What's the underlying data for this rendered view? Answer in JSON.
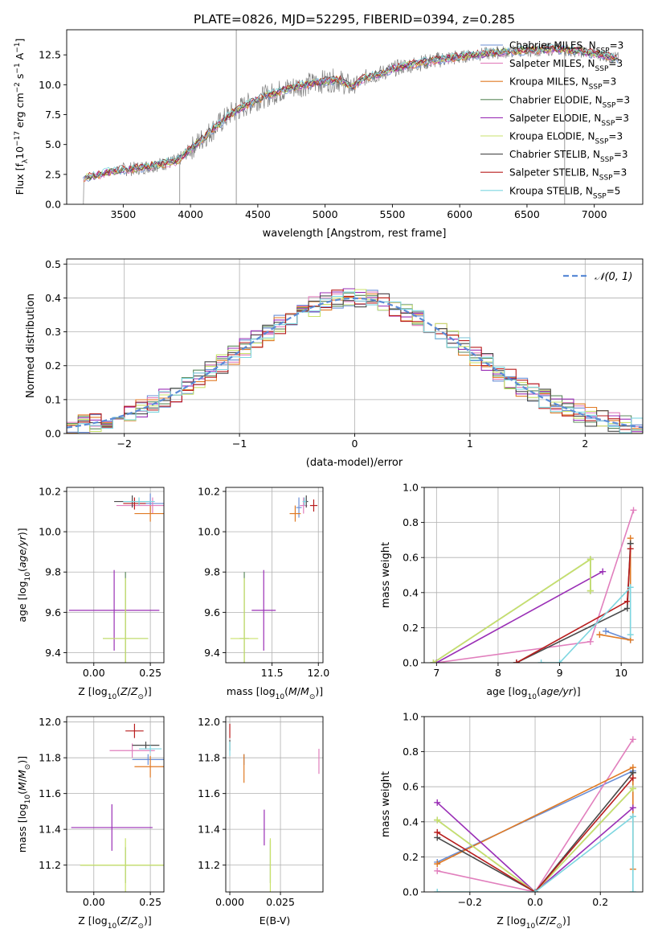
{
  "figure": {
    "title": "PLATE=0826, MJD=52295, FIBERID=0394, z=0.285"
  },
  "colors": {
    "chabrier_miles": "#6b8fd6",
    "salpeter_miles": "#e17fbd",
    "kroupa_miles": "#e07a24",
    "chabrier_elodie": "#5c8a5c",
    "salpeter_elodie": "#9a2fb6",
    "kroupa_elodie": "#c9e26b",
    "chabrier_stelib": "#4a4a4a",
    "salpeter_stelib": "#b81d1d",
    "kroupa_stelib": "#7dd6e0",
    "data": "#808080",
    "normal": "#5b8bd6"
  },
  "chart_data": [
    {
      "id": "spectrum",
      "type": "line",
      "title": "PLATE=0826, MJD=52295, FIBERID=0394, z=0.285",
      "xlabel": "wavelength [Angstrom, rest frame]",
      "ylabel": "Flux [f",
      "xlim": [
        3080,
        7360
      ],
      "ylim": [
        0,
        14.6
      ],
      "xticks": [
        3500,
        4000,
        4500,
        5000,
        5500,
        6000,
        6500,
        7000
      ],
      "yticks": [
        0.0,
        2.5,
        5.0,
        7.5,
        10.0,
        12.5
      ],
      "ytick_labels": [
        "0.0",
        "2.5",
        "5.0",
        "7.5",
        "10.0",
        "12.5"
      ],
      "legend_position": "upper right",
      "legend": [
        {
          "name": "Chabrier MILES, N",
          "sub": "SSP",
          "suffix": "=3",
          "color": "#6b8fd6"
        },
        {
          "name": "Salpeter MILES, N",
          "sub": "SSP",
          "suffix": "=3",
          "color": "#e17fbd"
        },
        {
          "name": "Kroupa MILES, N",
          "sub": "SSP",
          "suffix": "=3",
          "color": "#e07a24"
        },
        {
          "name": "Chabrier ELODIE, N",
          "sub": "SSP",
          "suffix": "=3",
          "color": "#5c8a5c"
        },
        {
          "name": "Salpeter ELODIE, N",
          "sub": "SSP",
          "suffix": "=3",
          "color": "#9a2fb6"
        },
        {
          "name": "Kroupa ELODIE, N",
          "sub": "SSP",
          "suffix": "=3",
          "color": "#c9e26b"
        },
        {
          "name": "Chabrier STELIB, N",
          "sub": "SSP",
          "suffix": "=3",
          "color": "#4a4a4a"
        },
        {
          "name": "Salpeter STELIB, N",
          "sub": "SSP",
          "suffix": "=3",
          "color": "#b81d1d"
        },
        {
          "name": "Kroupa STELIB, N",
          "sub": "SSP",
          "suffix": "=5",
          "color": "#7dd6e0"
        }
      ],
      "continuum": {
        "x": [
          3200,
          3300,
          3400,
          3500,
          3600,
          3700,
          3800,
          3900,
          4000,
          4100,
          4200,
          4300,
          4400,
          4500,
          4600,
          4700,
          4800,
          4900,
          5000,
          5100,
          5200,
          5300,
          5400,
          5500,
          5600,
          5700,
          5800,
          5900,
          6000,
          6100,
          6200,
          6300,
          6400,
          6500,
          6600,
          6700,
          6800,
          6900,
          7000,
          7100,
          7180
        ],
        "y": [
          2.2,
          2.4,
          2.7,
          2.9,
          3.0,
          3.2,
          3.4,
          3.6,
          4.6,
          5.6,
          6.6,
          7.6,
          8.2,
          8.8,
          9.2,
          9.6,
          9.9,
          10.1,
          10.3,
          10.4,
          9.8,
          10.6,
          10.9,
          11.3,
          11.6,
          11.8,
          12.0,
          12.2,
          12.3,
          12.5,
          12.6,
          12.7,
          12.8,
          12.9,
          12.9,
          13.0,
          12.9,
          12.8,
          12.6,
          12.4,
          12.2
        ]
      }
    },
    {
      "id": "residuals",
      "type": "bar",
      "xlabel": "(data-model)/error",
      "ylabel": "Normed distribution",
      "xlim": [
        -2.5,
        2.5
      ],
      "ylim": [
        0,
        0.515
      ],
      "xticks": [
        -2,
        -1,
        0,
        1,
        2
      ],
      "xtick_labels": [
        "−2",
        "−1",
        "0",
        "1",
        "2"
      ],
      "yticks": [
        0.0,
        0.1,
        0.2,
        0.3,
        0.4,
        0.5
      ],
      "ytick_labels": [
        "0.0",
        "0.1",
        "0.2",
        "0.3",
        "0.4",
        "0.5"
      ],
      "legend": [
        {
          "name": "𝒩(0, 1)",
          "color": "#5b8bd6",
          "style": "dashed"
        }
      ],
      "legend_position": "upper right",
      "bins": {
        "start": -2.5,
        "width": 0.1
      }
    },
    {
      "id": "age_vs_Z",
      "type": "scatter",
      "xlabel": "Z [log",
      "ylabel": "age  [log",
      "xlim": [
        -0.12,
        0.31
      ],
      "ylim": [
        9.35,
        10.22
      ],
      "xticks": [
        0.0,
        0.25
      ],
      "xtick_labels": [
        "0.00",
        "0.25"
      ],
      "yticks": [
        9.4,
        9.6,
        9.8,
        10.0,
        10.2
      ],
      "ytick_labels": [
        "9.4",
        "9.6",
        "9.8",
        "10.0",
        "10.2"
      ],
      "points": [
        {
          "model": "chabrier_miles",
          "x": 0.25,
          "y": 10.14,
          "xerr": 0.06,
          "yerr": 0.05
        },
        {
          "model": "salpeter_miles",
          "x": 0.26,
          "y": 10.13,
          "xerr": 0.16,
          "yerr": 0.04
        },
        {
          "model": "kroupa_miles",
          "x": 0.25,
          "y": 10.09,
          "xerr": 0.07,
          "yerr": 0.04
        },
        {
          "model": "chabrier_elodie",
          "x": 0.14,
          "y": 9.47,
          "xerr": 0.1,
          "yerr": 0.33
        },
        {
          "model": "salpeter_elodie",
          "x": 0.09,
          "y": 9.61,
          "xerr": 0.2,
          "yerr": 0.2
        },
        {
          "model": "kroupa_elodie",
          "x": 0.14,
          "y": 9.47,
          "xerr": 0.1,
          "yerr": 0.3
        },
        {
          "model": "chabrier_stelib",
          "x": 0.17,
          "y": 10.15,
          "xerr": 0.08,
          "yerr": 0.03
        },
        {
          "model": "salpeter_stelib",
          "x": 0.18,
          "y": 10.14,
          "xerr": 0.05,
          "yerr": 0.03
        },
        {
          "model": "kroupa_stelib",
          "x": 0.2,
          "y": 10.15,
          "xerr": 0.07,
          "yerr": 0.02
        }
      ]
    },
    {
      "id": "age_vs_mass",
      "type": "scatter",
      "xlabel": "mass [log",
      "ylabel": "",
      "xlim": [
        11.0,
        12.05
      ],
      "ylim": [
        9.35,
        10.22
      ],
      "xticks": [
        11.5,
        12.0
      ],
      "xtick_labels": [
        "11.5",
        "12.0"
      ],
      "yticks": [
        9.4,
        9.6,
        9.8,
        10.0,
        10.2
      ],
      "ytick_labels": [
        "9.4",
        "9.6",
        "9.8",
        "10.0",
        "10.2"
      ],
      "points": [
        {
          "model": "chabrier_miles",
          "x": 11.79,
          "y": 10.12,
          "xerr": 0.03,
          "yerr": 0.05
        },
        {
          "model": "salpeter_miles",
          "x": 11.84,
          "y": 10.13,
          "xerr": 0.04,
          "yerr": 0.04
        },
        {
          "model": "kroupa_miles",
          "x": 11.75,
          "y": 10.09,
          "xerr": 0.06,
          "yerr": 0.04
        },
        {
          "model": "chabrier_elodie",
          "x": 11.2,
          "y": 9.47,
          "xerr": 0.05,
          "yerr": 0.33
        },
        {
          "model": "salpeter_elodie",
          "x": 11.41,
          "y": 9.61,
          "xerr": 0.13,
          "yerr": 0.2
        },
        {
          "model": "kroupa_elodie",
          "x": 11.2,
          "y": 9.47,
          "xerr": 0.15,
          "yerr": 0.3
        },
        {
          "model": "chabrier_stelib",
          "x": 11.87,
          "y": 10.15,
          "xerr": 0.02,
          "yerr": 0.03
        },
        {
          "model": "salpeter_stelib",
          "x": 11.95,
          "y": 10.13,
          "xerr": 0.04,
          "yerr": 0.03
        },
        {
          "model": "kroupa_stelib",
          "x": 11.85,
          "y": 10.15,
          "xerr": 0.02,
          "yerr": 0.02
        }
      ]
    },
    {
      "id": "weight_vs_age",
      "type": "line",
      "xlabel": "age  [log",
      "ylabel": "mass weight",
      "xlim": [
        6.8,
        10.35
      ],
      "ylim": [
        0,
        1.0
      ],
      "xticks": [
        7,
        8,
        9,
        10
      ],
      "xtick_labels": [
        "7",
        "8",
        "9",
        "10"
      ],
      "yticks": [
        0.0,
        0.2,
        0.4,
        0.6,
        0.8,
        1.0
      ],
      "ytick_labels": [
        "0.0",
        "0.2",
        "0.4",
        "0.6",
        "0.8",
        "1.0"
      ],
      "series": [
        {
          "model": "chabrier_miles",
          "x": [
            9.75,
            10.15
          ],
          "y": [
            0.18,
            0.13
          ]
        },
        {
          "model": "salpeter_miles",
          "x": [
            7.0,
            9.5,
            10.2
          ],
          "y": [
            0.0,
            0.12,
            0.87
          ]
        },
        {
          "model": "kroupa_miles",
          "x": [
            9.65,
            10.15,
            10.15
          ],
          "y": [
            0.16,
            0.13,
            0.71
          ]
        },
        {
          "model": "chabrier_elodie",
          "x": [
            6.95,
            9.5,
            9.5
          ],
          "y": [
            0.0,
            0.59,
            0.41
          ]
        },
        {
          "model": "salpeter_elodie",
          "x": [
            7.0,
            9.7
          ],
          "y": [
            0.0,
            0.52
          ]
        },
        {
          "model": "kroupa_elodie",
          "x": [
            6.95,
            9.5,
            9.5
          ],
          "y": [
            0.0,
            0.59,
            0.41
          ]
        },
        {
          "model": "chabrier_stelib",
          "x": [
            8.3,
            10.1,
            10.15
          ],
          "y": [
            0.0,
            0.31,
            0.68
          ]
        },
        {
          "model": "salpeter_stelib",
          "x": [
            8.3,
            10.1,
            10.15
          ],
          "y": [
            0.0,
            0.35,
            0.65
          ]
        },
        {
          "model": "kroupa_stelib",
          "x": [
            8.7,
            9.0,
            10.15,
            10.15
          ],
          "y": [
            0.0,
            0.0,
            0.43,
            0.16
          ]
        }
      ]
    },
    {
      "id": "mass_vs_Z",
      "type": "scatter",
      "xlabel": "Z [log",
      "ylabel": "mass [log",
      "xlim": [
        -0.12,
        0.31
      ],
      "ylim": [
        11.05,
        12.03
      ],
      "xticks": [
        0.0,
        0.25
      ],
      "xtick_labels": [
        "0.00",
        "0.25"
      ],
      "yticks": [
        11.2,
        11.4,
        11.6,
        11.8,
        12.0
      ],
      "ytick_labels": [
        "11.2",
        "11.4",
        "11.6",
        "11.8",
        "12.0"
      ],
      "points": [
        {
          "model": "chabrier_miles",
          "x": 0.24,
          "y": 11.79,
          "xerr": 0.07,
          "yerr": 0.03
        },
        {
          "model": "salpeter_miles",
          "x": 0.17,
          "y": 11.84,
          "xerr": 0.1,
          "yerr": 0.04
        },
        {
          "model": "kroupa_miles",
          "x": 0.25,
          "y": 11.75,
          "xerr": 0.07,
          "yerr": 0.06
        },
        {
          "model": "chabrier_elodie",
          "x": 0.14,
          "y": 11.2,
          "xerr": 0.2,
          "yerr": 0.1
        },
        {
          "model": "salpeter_elodie",
          "x": 0.08,
          "y": 11.41,
          "xerr": 0.18,
          "yerr": 0.13
        },
        {
          "model": "kroupa_elodie",
          "x": 0.14,
          "y": 11.2,
          "xerr": 0.2,
          "yerr": 0.15
        },
        {
          "model": "chabrier_stelib",
          "x": 0.23,
          "y": 11.87,
          "xerr": 0.06,
          "yerr": 0.02
        },
        {
          "model": "salpeter_stelib",
          "x": 0.18,
          "y": 11.95,
          "xerr": 0.04,
          "yerr": 0.04
        },
        {
          "model": "kroupa_stelib",
          "x": 0.25,
          "y": 11.85,
          "xerr": 0.05,
          "yerr": 0.02
        }
      ]
    },
    {
      "id": "mass_vs_EBV",
      "type": "scatter",
      "xlabel": "E(B-V)",
      "ylabel": "",
      "xlim": [
        -0.002,
        0.046
      ],
      "ylim": [
        11.05,
        12.03
      ],
      "xticks": [
        0.0,
        0.025
      ],
      "xtick_labels": [
        "0.000",
        "0.025"
      ],
      "yticks": [
        11.2,
        11.4,
        11.6,
        11.8,
        12.0
      ],
      "ytick_labels": [
        "11.2",
        "11.4",
        "11.6",
        "11.8",
        "12.0"
      ],
      "points": [
        {
          "model": "chabrier_miles",
          "x": 0.007,
          "y": 11.79,
          "xerr": 0.0,
          "yerr": 0.03
        },
        {
          "model": "salpeter_miles",
          "x": 0.044,
          "y": 11.78,
          "xerr": 0.0,
          "yerr": 0.07
        },
        {
          "model": "kroupa_miles",
          "x": 0.007,
          "y": 11.74,
          "xerr": 0.0,
          "yerr": 0.08
        },
        {
          "model": "chabrier_elodie",
          "x": 0.02,
          "y": 11.22,
          "xerr": 0.0,
          "yerr": 0.12
        },
        {
          "model": "salpeter_elodie",
          "x": 0.017,
          "y": 11.41,
          "xerr": 0.0,
          "yerr": 0.1
        },
        {
          "model": "kroupa_elodie",
          "x": 0.02,
          "y": 11.2,
          "xerr": 0.0,
          "yerr": 0.15
        },
        {
          "model": "chabrier_stelib",
          "x": 0.0,
          "y": 11.87,
          "xerr": 0.0,
          "yerr": 0.03
        },
        {
          "model": "salpeter_stelib",
          "x": 0.0,
          "y": 11.95,
          "xerr": 0.0,
          "yerr": 0.04
        },
        {
          "model": "kroupa_stelib",
          "x": 0.0,
          "y": 11.85,
          "xerr": 0.0,
          "yerr": 0.04
        }
      ]
    },
    {
      "id": "weight_vs_Z",
      "type": "line",
      "xlabel": "Z [log",
      "ylabel": "mass weight",
      "xlim": [
        -0.34,
        0.33
      ],
      "ylim": [
        0,
        1.0
      ],
      "xticks": [
        -0.2,
        0.0,
        0.2
      ],
      "xtick_labels": [
        "−0.2",
        "0.0",
        "0.2"
      ],
      "yticks": [
        0.0,
        0.2,
        0.4,
        0.6,
        0.8,
        1.0
      ],
      "ytick_labels": [
        "0.0",
        "0.2",
        "0.4",
        "0.6",
        "0.8",
        "1.0"
      ],
      "series": [
        {
          "model": "chabrier_miles",
          "x": [
            -0.3,
            0.3
          ],
          "y": [
            0.17,
            0.69
          ]
        },
        {
          "model": "salpeter_miles",
          "x": [
            -0.3,
            0.0,
            0.3
          ],
          "y": [
            0.12,
            0.0,
            0.87
          ]
        },
        {
          "model": "kroupa_miles",
          "x": [
            -0.3,
            0.3,
            0.3
          ],
          "y": [
            0.16,
            0.71,
            0.13
          ]
        },
        {
          "model": "chabrier_elodie",
          "x": [
            -0.3,
            0.0,
            0.3
          ],
          "y": [
            0.41,
            0.0,
            0.59
          ]
        },
        {
          "model": "salpeter_elodie",
          "x": [
            -0.3,
            0.0,
            0.3
          ],
          "y": [
            0.51,
            0.0,
            0.48
          ]
        },
        {
          "model": "kroupa_elodie",
          "x": [
            -0.3,
            0.0,
            0.3
          ],
          "y": [
            0.41,
            0.0,
            0.59
          ]
        },
        {
          "model": "chabrier_stelib",
          "x": [
            -0.3,
            0.0,
            0.3
          ],
          "y": [
            0.31,
            0.0,
            0.68
          ]
        },
        {
          "model": "salpeter_stelib",
          "x": [
            -0.3,
            0.0,
            0.3
          ],
          "y": [
            0.34,
            0.0,
            0.65
          ]
        },
        {
          "model": "kroupa_stelib",
          "x": [
            -0.3,
            0.0,
            0.3,
            0.3
          ],
          "y": [
            0.0,
            0.0,
            0.43,
            0.0
          ]
        }
      ]
    }
  ]
}
